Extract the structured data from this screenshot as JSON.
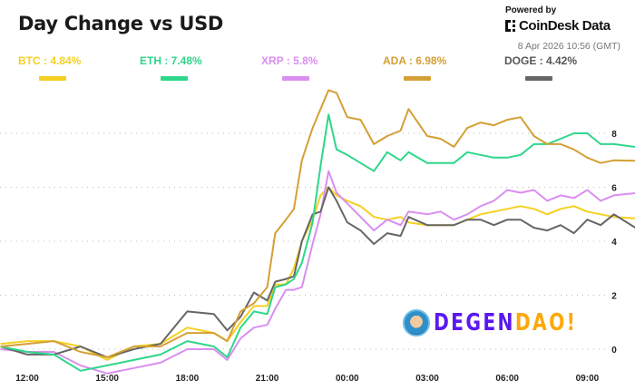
{
  "header": {
    "title": "Day Change vs USD",
    "powered_by": "Powered by",
    "brand": "CoinDesk Data",
    "timestamp": "8 Apr 2026 10:56 (GMT)"
  },
  "watermark": {
    "part1": "DEGEN",
    "part2": "DAO!"
  },
  "legend": [
    {
      "label": "BTC : 4.84%",
      "color": "#f5d020"
    },
    {
      "label": "ETH : 7.48%",
      "color": "#2ed68a"
    },
    {
      "label": "XRP : 5.8%",
      "color": "#d98ef0"
    },
    {
      "label": "ADA : 6.98%",
      "color": "#d4a035"
    },
    {
      "label": "DOGE : 4.42%",
      "color": "#666666"
    }
  ],
  "chart_data": {
    "type": "line",
    "title": "Day Change vs USD",
    "xlabel": "",
    "ylabel": "",
    "x_ticks": [
      "12:00",
      "15:00",
      "18:00",
      "21:00",
      "00:00",
      "03:00",
      "06:00",
      "09:00"
    ],
    "y_ticks": [
      0,
      2,
      4,
      6,
      8
    ],
    "ylim": [
      -1.2,
      10
    ],
    "grid": "horizontal dotted",
    "y_axis_side": "right",
    "x": [
      "11:00",
      "12:00",
      "13:00",
      "14:00",
      "15:00",
      "16:00",
      "17:00",
      "18:00",
      "19:00",
      "19:30",
      "20:00",
      "20:30",
      "21:00",
      "21:18",
      "21:42",
      "22:00",
      "22:18",
      "22:42",
      "23:00",
      "23:18",
      "23:36",
      "00:00",
      "00:30",
      "01:00",
      "01:30",
      "02:00",
      "02:18",
      "03:00",
      "03:30",
      "04:00",
      "04:30",
      "05:00",
      "05:30",
      "06:00",
      "06:30",
      "07:00",
      "07:30",
      "08:00",
      "08:30",
      "09:00",
      "09:30",
      "10:00",
      "10:56"
    ],
    "series": [
      {
        "name": "BTC",
        "color": "#f5d020",
        "values": [
          0.2,
          0.3,
          0.3,
          0.1,
          -0.4,
          0.1,
          0.2,
          0.8,
          0.6,
          0.3,
          1.0,
          1.6,
          1.6,
          2.4,
          2.4,
          3.0,
          4.0,
          4.8,
          5.7,
          6.0,
          5.7,
          5.5,
          5.3,
          4.9,
          4.8,
          4.9,
          4.7,
          4.6,
          4.6,
          4.6,
          4.8,
          5.0,
          5.1,
          5.2,
          5.3,
          5.2,
          5.0,
          5.2,
          5.3,
          5.1,
          5.0,
          4.9,
          4.84
        ]
      },
      {
        "name": "ETH",
        "color": "#2ed68a",
        "values": [
          0.1,
          -0.1,
          -0.2,
          -0.8,
          -0.6,
          -0.4,
          -0.2,
          0.3,
          0.1,
          -0.3,
          0.8,
          1.4,
          1.3,
          2.3,
          2.4,
          2.6,
          3.2,
          4.7,
          6.8,
          8.7,
          7.4,
          7.2,
          6.9,
          6.6,
          7.3,
          7.0,
          7.3,
          6.9,
          6.9,
          6.9,
          7.3,
          7.2,
          7.1,
          7.1,
          7.2,
          7.6,
          7.6,
          7.8,
          8.0,
          8.0,
          7.6,
          7.6,
          7.48
        ]
      },
      {
        "name": "XRP",
        "color": "#d98ef0",
        "values": [
          0.0,
          -0.1,
          -0.1,
          -0.6,
          -0.9,
          -0.7,
          -0.5,
          0.0,
          0.0,
          -0.4,
          0.4,
          0.8,
          0.9,
          1.5,
          2.2,
          2.2,
          2.3,
          3.9,
          5.0,
          6.6,
          5.8,
          5.4,
          4.9,
          4.4,
          4.8,
          4.6,
          5.1,
          5.0,
          5.1,
          4.8,
          5.0,
          5.3,
          5.5,
          5.9,
          5.8,
          5.9,
          5.5,
          5.7,
          5.6,
          5.9,
          5.5,
          5.7,
          5.8
        ]
      },
      {
        "name": "ADA",
        "color": "#d4a035",
        "values": [
          0.1,
          0.2,
          0.3,
          -0.1,
          -0.3,
          0.1,
          0.1,
          0.6,
          0.6,
          0.3,
          1.4,
          1.7,
          2.3,
          4.3,
          4.8,
          5.2,
          7.0,
          8.2,
          8.9,
          9.6,
          9.5,
          8.6,
          8.5,
          7.6,
          7.9,
          8.1,
          8.9,
          7.9,
          7.8,
          7.5,
          8.2,
          8.4,
          8.3,
          8.5,
          8.6,
          7.9,
          7.6,
          7.6,
          7.4,
          7.1,
          6.9,
          7.0,
          6.98
        ]
      },
      {
        "name": "DOGE",
        "color": "#666666",
        "values": [
          0.1,
          -0.2,
          -0.2,
          0.1,
          -0.3,
          0.0,
          0.2,
          1.4,
          1.3,
          0.7,
          1.2,
          2.1,
          1.8,
          2.5,
          2.6,
          2.7,
          4.0,
          5.0,
          5.1,
          6.0,
          5.5,
          4.7,
          4.4,
          3.9,
          4.3,
          4.2,
          4.9,
          4.6,
          4.6,
          4.6,
          4.8,
          4.8,
          4.6,
          4.8,
          4.8,
          4.5,
          4.4,
          4.6,
          4.3,
          4.8,
          4.6,
          5.0,
          4.42
        ]
      }
    ]
  }
}
